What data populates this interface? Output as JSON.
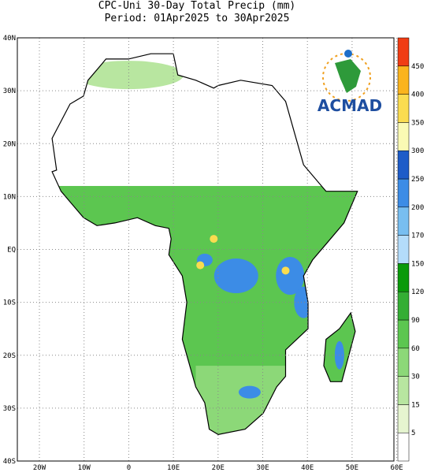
{
  "map": {
    "title": [
      "CPC-Uni 30-Day Total Precip (mm)",
      "Period: 01Apr2025 to 30Apr2025"
    ],
    "lat_labels": [
      "40N",
      "30N",
      "20N",
      "10N",
      "EQ",
      "10S",
      "20S",
      "30S",
      "40S"
    ],
    "lon_labels": [
      "20W",
      "10W",
      "0",
      "10E",
      "20E",
      "30E",
      "40E",
      "50E",
      "60E"
    ],
    "logo": "ACMAD",
    "colorbar": {
      "levels": [
        5,
        15,
        30,
        60,
        90,
        120,
        150,
        170,
        200,
        250,
        300,
        350,
        400,
        450
      ],
      "colors": [
        "#ffffff",
        "#e6f5d0",
        "#b8e6a0",
        "#8cd878",
        "#5cc650",
        "#34ae34",
        "#0a9a0a",
        "#b4dcfa",
        "#78bef0",
        "#3c8ce6",
        "#1e5cc8",
        "#fafab4",
        "#fadc50",
        "#fab41e",
        "#f03c14"
      ]
    }
  }
}
